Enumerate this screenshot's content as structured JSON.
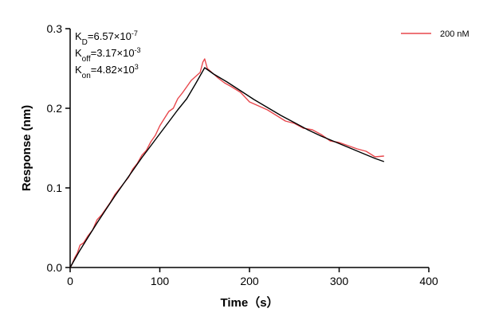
{
  "chart_data": {
    "type": "line",
    "xlabel": "Time（s）",
    "ylabel": "Response (nm)",
    "xlim": [
      0,
      400
    ],
    "ylim": [
      0,
      0.3
    ],
    "x_ticks": [
      0,
      100,
      200,
      300,
      400
    ],
    "y_ticks": [
      0.0,
      0.1,
      0.2,
      0.3
    ],
    "x_tick_labels": [
      "0",
      "100",
      "200",
      "300",
      "400"
    ],
    "y_tick_labels": [
      "0.0",
      "0.1",
      "0.2",
      "0.3"
    ],
    "grid": false,
    "legend": {
      "placement": "top-right",
      "entries": [
        {
          "label": "200 nM",
          "color": "#e8474c"
        }
      ]
    },
    "annotations": [
      {
        "base": "K",
        "sub": "D",
        "text": "=6.57×10",
        "sup": "-7"
      },
      {
        "base": "K",
        "sub": "off",
        "text": "=3.17×10",
        "sup": "-3"
      },
      {
        "base": "K",
        "sub": "on",
        "text": "=4.82×10",
        "sup": "3"
      }
    ],
    "series": [
      {
        "name": "200 nM",
        "color": "#e8474c",
        "x": [
          0,
          2,
          5,
          8,
          11,
          15,
          20,
          25,
          30,
          35,
          40,
          45,
          50,
          55,
          60,
          65,
          70,
          75,
          80,
          85,
          90,
          95,
          100,
          105,
          110,
          115,
          120,
          125,
          130,
          135,
          140,
          145,
          148,
          150,
          153,
          158,
          165,
          172,
          180,
          190,
          200,
          210,
          220,
          230,
          240,
          250,
          260,
          270,
          280,
          290,
          300,
          310,
          320,
          330,
          340,
          350
        ],
        "y": [
          0.0,
          0.004,
          0.012,
          0.018,
          0.028,
          0.031,
          0.04,
          0.047,
          0.06,
          0.066,
          0.074,
          0.082,
          0.092,
          0.099,
          0.106,
          0.113,
          0.124,
          0.131,
          0.141,
          0.147,
          0.158,
          0.166,
          0.178,
          0.187,
          0.196,
          0.2,
          0.212,
          0.219,
          0.227,
          0.235,
          0.24,
          0.245,
          0.258,
          0.262,
          0.25,
          0.245,
          0.238,
          0.232,
          0.227,
          0.22,
          0.208,
          0.203,
          0.198,
          0.191,
          0.184,
          0.181,
          0.175,
          0.173,
          0.167,
          0.159,
          0.157,
          0.153,
          0.149,
          0.146,
          0.139,
          0.14
        ]
      }
    ],
    "fit": {
      "color": "#000000",
      "x": [
        0,
        10,
        20,
        30,
        40,
        50,
        60,
        70,
        80,
        90,
        100,
        110,
        120,
        130,
        140,
        150,
        160,
        175,
        190,
        205,
        220,
        235,
        250,
        265,
        280,
        295,
        310,
        325,
        340,
        350
      ],
      "y": [
        0.0,
        0.02,
        0.038,
        0.056,
        0.073,
        0.09,
        0.106,
        0.122,
        0.138,
        0.153,
        0.168,
        0.183,
        0.198,
        0.212,
        0.231,
        0.251,
        0.243,
        0.233,
        0.222,
        0.211,
        0.201,
        0.191,
        0.182,
        0.173,
        0.165,
        0.158,
        0.151,
        0.144,
        0.137,
        0.133
      ]
    }
  }
}
